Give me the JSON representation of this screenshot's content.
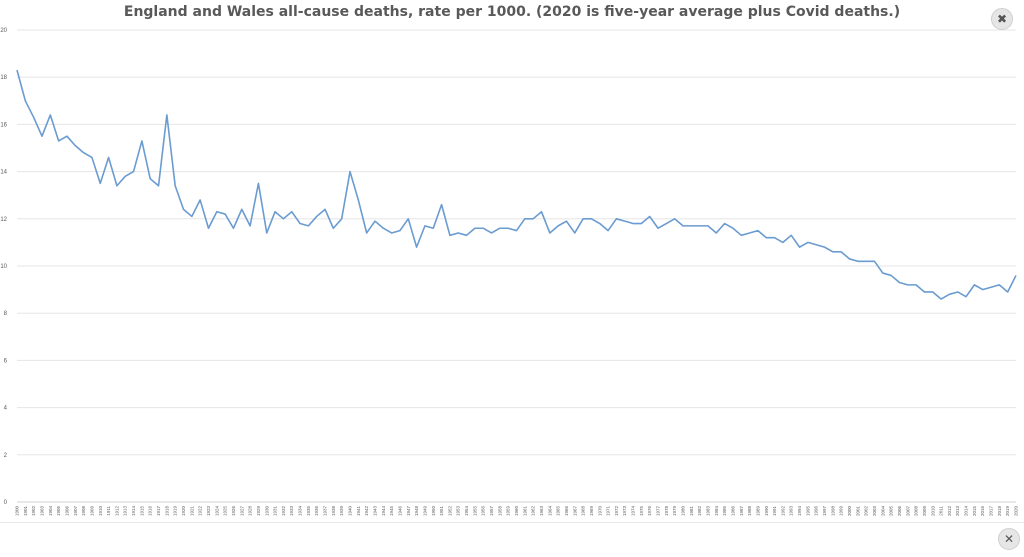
{
  "chart_data": {
    "type": "line",
    "title": "England and Wales all-cause deaths, rate per 1000. (2020 is five-year average plus Covid deaths.)",
    "xlabel": "",
    "ylabel": "",
    "ylim": [
      0,
      20
    ],
    "yticks": [
      0,
      2,
      4,
      6,
      8,
      10,
      12,
      14,
      16,
      18,
      20
    ],
    "grid": true,
    "legend": "none",
    "line_color": "#6a9bd1",
    "x": [
      1900,
      1901,
      1902,
      1903,
      1904,
      1905,
      1906,
      1907,
      1908,
      1909,
      1910,
      1911,
      1912,
      1913,
      1914,
      1915,
      1916,
      1917,
      1918,
      1919,
      1920,
      1921,
      1922,
      1923,
      1924,
      1925,
      1926,
      1927,
      1928,
      1929,
      1930,
      1931,
      1932,
      1933,
      1934,
      1935,
      1936,
      1937,
      1938,
      1939,
      1940,
      1941,
      1942,
      1943,
      1944,
      1945,
      1946,
      1947,
      1948,
      1949,
      1950,
      1951,
      1952,
      1953,
      1954,
      1955,
      1956,
      1957,
      1958,
      1959,
      1960,
      1961,
      1962,
      1963,
      1964,
      1965,
      1966,
      1967,
      1968,
      1969,
      1970,
      1971,
      1972,
      1973,
      1974,
      1975,
      1976,
      1977,
      1978,
      1979,
      1980,
      1981,
      1982,
      1983,
      1984,
      1985,
      1986,
      1987,
      1988,
      1989,
      1990,
      1991,
      1992,
      1993,
      1994,
      1995,
      1996,
      1997,
      1998,
      1999,
      2000,
      2001,
      2002,
      2003,
      2004,
      2005,
      2006,
      2007,
      2008,
      2009,
      2010,
      2011,
      2012,
      2013,
      2014,
      2015,
      2016,
      2017,
      2018,
      2019,
      2020
    ],
    "series": [
      {
        "values": [
          18.3,
          17.0,
          16.3,
          15.5,
          16.4,
          15.3,
          15.5,
          15.1,
          14.8,
          14.6,
          13.5,
          14.6,
          13.4,
          13.8,
          14.0,
          15.3,
          13.7,
          13.4,
          16.4,
          13.4,
          12.4,
          12.1,
          12.8,
          11.6,
          12.3,
          12.2,
          11.6,
          12.4,
          11.7,
          13.5,
          11.4,
          12.3,
          12.0,
          12.3,
          11.8,
          11.7,
          12.1,
          12.4,
          11.6,
          12.0,
          14.0,
          12.8,
          11.4,
          11.9,
          11.6,
          11.4,
          11.5,
          12.0,
          10.8,
          11.7,
          11.6,
          12.6,
          11.3,
          11.4,
          11.3,
          11.6,
          11.6,
          11.4,
          11.6,
          11.6,
          11.5,
          12.0,
          12.0,
          12.3,
          11.4,
          11.7,
          11.9,
          11.4,
          12.0,
          12.0,
          11.8,
          11.5,
          12.0,
          11.9,
          11.8,
          11.8,
          12.1,
          11.6,
          11.8,
          12.0,
          11.7,
          11.7,
          11.7,
          11.7,
          11.4,
          11.8,
          11.6,
          11.3,
          11.4,
          11.5,
          11.2,
          11.2,
          11.0,
          11.3,
          10.8,
          11.0,
          10.9,
          10.8,
          10.6,
          10.6,
          10.3,
          10.2,
          10.2,
          10.2,
          9.7,
          9.6,
          9.3,
          9.2,
          9.2,
          8.9,
          8.9,
          8.6,
          8.8,
          8.9,
          8.7,
          9.2,
          9.0,
          9.1,
          9.2,
          8.9,
          9.6
        ]
      }
    ]
  },
  "controls": {
    "expand_icon": "expand-arrows-icon",
    "close_icon": "close-icon",
    "expand_glyph": "✖",
    "close_glyph": "✕"
  }
}
